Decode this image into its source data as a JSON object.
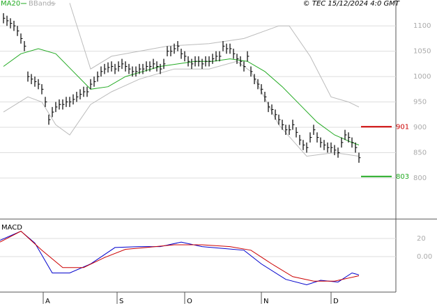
{
  "chart_data": {
    "type": "ohlc",
    "source": "© TEC 15/12/2024 4:0 GMT",
    "xlim": [
      -1,
      113
    ],
    "xticks": [
      {
        "value": 11.4,
        "label": "A"
      },
      {
        "value": 32.6,
        "label": "S"
      },
      {
        "value": 52,
        "label": "O"
      },
      {
        "value": 74,
        "label": "N"
      },
      {
        "value": 94,
        "label": "D"
      }
    ],
    "ylim": [
      719,
      1151
    ],
    "yticks": [
      800,
      850,
      900,
      950,
      1000,
      1050,
      1100
    ],
    "grid": true,
    "bar_color": "#000000",
    "high": [
      1125,
      1120,
      1115,
      1110,
      1100,
      1085,
      1070,
      1010,
      1005,
      1000,
      995,
      985,
      960,
      925,
      940,
      950,
      955,
      955,
      960,
      960,
      965,
      970,
      975,
      980,
      980,
      995,
      1000,
      1010,
      1020,
      1025,
      1028,
      1030,
      1025,
      1030,
      1035,
      1030,
      1025,
      1020,
      1020,
      1025,
      1025,
      1030,
      1030,
      1035,
      1030,
      1025,
      1035,
      1060,
      1060,
      1065,
      1070,
      1055,
      1050,
      1040,
      1035,
      1040,
      1040,
      1035,
      1040,
      1040,
      1045,
      1050,
      1050,
      1070,
      1065,
      1065,
      1055,
      1045,
      1040,
      1030,
      1050,
      1020,
      1005,
      995,
      985,
      970,
      950,
      945,
      935,
      925,
      915,
      905,
      905,
      915,
      900,
      885,
      875,
      870,
      890,
      905,
      890,
      880,
      875,
      870,
      870,
      865,
      860,
      880,
      895,
      890,
      880,
      870,
      850
    ],
    "low": [
      1105,
      1100,
      1095,
      1090,
      1080,
      1065,
      1050,
      990,
      985,
      980,
      975,
      965,
      940,
      905,
      920,
      930,
      935,
      935,
      940,
      940,
      945,
      950,
      955,
      960,
      960,
      975,
      980,
      990,
      1000,
      1005,
      1008,
      1010,
      1005,
      1010,
      1015,
      1010,
      1005,
      1000,
      1000,
      1005,
      1005,
      1010,
      1010,
      1015,
      1010,
      1005,
      1015,
      1040,
      1040,
      1045,
      1050,
      1035,
      1030,
      1020,
      1015,
      1020,
      1020,
      1015,
      1020,
      1020,
      1025,
      1030,
      1030,
      1050,
      1045,
      1045,
      1035,
      1025,
      1020,
      1010,
      1030,
      1000,
      985,
      975,
      965,
      950,
      930,
      925,
      915,
      905,
      895,
      885,
      885,
      895,
      880,
      865,
      855,
      850,
      870,
      885,
      870,
      860,
      855,
      850,
      850,
      845,
      840,
      860,
      875,
      870,
      860,
      850,
      830
    ],
    "close": [
      1115,
      1110,
      1105,
      1100,
      1090,
      1075,
      1060,
      1000,
      995,
      990,
      985,
      975,
      950,
      915,
      930,
      940,
      945,
      945,
      950,
      950,
      955,
      960,
      965,
      970,
      970,
      985,
      990,
      1000,
      1010,
      1015,
      1018,
      1020,
      1015,
      1020,
      1025,
      1020,
      1015,
      1010,
      1010,
      1015,
      1015,
      1020,
      1020,
      1025,
      1020,
      1015,
      1025,
      1050,
      1050,
      1055,
      1060,
      1045,
      1040,
      1030,
      1025,
      1030,
      1030,
      1025,
      1030,
      1030,
      1035,
      1040,
      1040,
      1060,
      1055,
      1055,
      1045,
      1035,
      1030,
      1020,
      1040,
      1010,
      995,
      985,
      975,
      960,
      940,
      935,
      925,
      915,
      905,
      895,
      895,
      905,
      890,
      875,
      865,
      860,
      880,
      895,
      880,
      870,
      865,
      860,
      860,
      855,
      850,
      870,
      885,
      880,
      870,
      860,
      840
    ],
    "series": [
      {
        "name": "MA20",
        "color": "#22aa22",
        "x": [
          0,
          5,
          10,
          15,
          20,
          25,
          30,
          35,
          40,
          45,
          50,
          55,
          60,
          65,
          70,
          75,
          80,
          85,
          90,
          95,
          100,
          102
        ],
        "values": [
          1020,
          1045,
          1055,
          1045,
          1010,
          975,
          980,
          1000,
          1010,
          1020,
          1025,
          1030,
          1030,
          1035,
          1030,
          1010,
          980,
          945,
          910,
          885,
          870,
          865
        ]
      },
      {
        "name": "BBands",
        "color": "#bbbbbb",
        "x": [
          19,
          25,
          31,
          39,
          47,
          59,
          69,
          79,
          82,
          88,
          94,
          99,
          102
        ],
        "values": [
          1145,
          1015,
          1040,
          1050,
          1060,
          1065,
          1075,
          1100,
          1100,
          1040,
          960,
          950,
          940
        ]
      },
      {
        "name": null,
        "color": "#bbbbbb",
        "x": [
          0,
          7,
          11,
          15,
          19,
          25,
          31,
          39,
          49,
          59,
          67,
          71,
          79,
          87,
          95,
          102
        ],
        "values": [
          930,
          960,
          950,
          905,
          885,
          945,
          970,
          995,
          1015,
          1015,
          1030,
          1010,
          905,
          843,
          850,
          843
        ]
      }
    ],
    "resistance": {
      "value": 901,
      "color": "#cc0000"
    },
    "support": {
      "value": 803,
      "color": "#22aa22"
    },
    "macd": {
      "title": "MACD",
      "ylim": [
        -39,
        39
      ],
      "yticks": [
        {
          "value": 20,
          "label": "20"
        },
        {
          "value": 0,
          "label": "0.00"
        }
      ],
      "series": [
        {
          "color": "#0000cc",
          "x": [
            -1,
            5,
            9,
            14,
            19,
            25,
            32,
            39,
            45,
            51,
            57,
            63,
            69,
            74,
            81,
            87,
            91,
            96,
            100,
            102
          ],
          "values": [
            18,
            28,
            15,
            -18,
            -18,
            -8,
            10,
            11,
            11,
            16,
            11,
            9,
            7,
            -8,
            -25,
            -31,
            -26,
            -28,
            -18,
            -20
          ]
        },
        {
          "color": "#cc0000",
          "x": [
            -1,
            5,
            11,
            17,
            23,
            29,
            35,
            41,
            49,
            57,
            65,
            71,
            77,
            83,
            89,
            95,
            102
          ],
          "values": [
            16,
            28,
            7,
            -12,
            -12,
            -1,
            8,
            10,
            13,
            13,
            11,
            7,
            -8,
            -22,
            -27,
            -27,
            -21
          ]
        }
      ]
    }
  }
}
